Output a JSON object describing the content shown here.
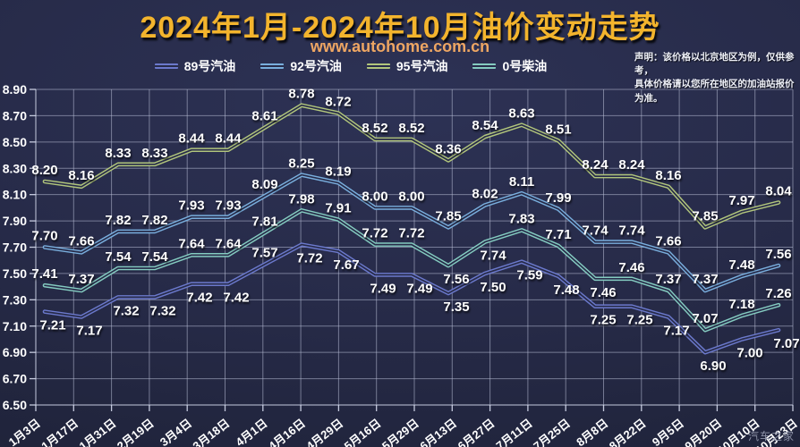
{
  "header": {
    "title": "2024年1月-2024年10月油价变动走势",
    "url": "www.autohome.com.cn",
    "disclaimer_line1": "声明：该价格以北京地区为例，仅供参考，",
    "disclaimer_line2": "具体价格请以您所在地区的加油站报价为准。"
  },
  "watermark": "汽车之家",
  "colors": {
    "background": "#272b49",
    "title_gold": "#f3b42d",
    "url_orange": "#eea663",
    "grid": "rgba(186,192,215,0.55)",
    "axis": "rgba(214,220,238,0.9)",
    "label_white": "#ffffff"
  },
  "chart_data": {
    "type": "line",
    "title": "2024年1月-2024年10月油价变动走势",
    "subtitle": "www.autohome.com.cn",
    "xlabel": "",
    "ylabel": "",
    "ylim": [
      6.5,
      8.9
    ],
    "ytick_step": 0.2,
    "grid": true,
    "legend_position": "top",
    "x": [
      "1月3日",
      "1月17日",
      "1月31日",
      "2月19日",
      "3月4日",
      "3月18日",
      "4月1日",
      "4月16日",
      "4月29日",
      "5月16日",
      "5月29日",
      "6月13日",
      "6月27日",
      "7月11日",
      "7月25日",
      "8月8日",
      "8月22日",
      "9月5日",
      "9月20日",
      "10月10日",
      "10月23日"
    ],
    "series": [
      {
        "name": "89号汽油",
        "key": "gasoline-89",
        "color": "#6b79cc",
        "values": [
          7.21,
          7.17,
          7.32,
          7.32,
          7.42,
          7.42,
          7.57,
          7.72,
          7.67,
          7.49,
          7.49,
          7.35,
          7.5,
          7.59,
          7.48,
          7.25,
          7.25,
          7.17,
          6.9,
          7.0,
          7.07
        ],
        "label_pos": "bbbbbbabbbbbbbbbbbbbb"
      },
      {
        "name": "92号汽油",
        "key": "gasoline-92",
        "color": "#79aedd",
        "values": [
          7.7,
          7.66,
          7.82,
          7.82,
          7.93,
          7.93,
          8.09,
          8.25,
          8.19,
          8.0,
          8.0,
          7.85,
          8.02,
          8.11,
          7.99,
          7.74,
          7.74,
          7.66,
          7.37,
          7.48,
          7.56
        ],
        "label_pos": "aaaaaaaaaaaaaaaaaaaaa"
      },
      {
        "name": "95号汽油",
        "key": "gasoline-95",
        "color": "#b1c57c",
        "values": [
          8.2,
          8.16,
          8.33,
          8.33,
          8.44,
          8.44,
          8.61,
          8.78,
          8.72,
          8.52,
          8.52,
          8.36,
          8.54,
          8.63,
          8.51,
          8.24,
          8.24,
          8.16,
          7.85,
          7.97,
          8.04
        ],
        "label_pos": "aaaaaaaaaaaaaaaaaaaaa"
      },
      {
        "name": "0号柴油",
        "key": "diesel-0",
        "color": "#84cbc0",
        "values": [
          7.41,
          7.37,
          7.54,
          7.54,
          7.64,
          7.64,
          7.81,
          7.98,
          7.91,
          7.72,
          7.72,
          7.56,
          7.74,
          7.83,
          7.71,
          7.46,
          7.46,
          7.37,
          7.07,
          7.18,
          7.26
        ],
        "label_pos": "aaaaaaaaaaabbaabaaaaa"
      }
    ]
  }
}
